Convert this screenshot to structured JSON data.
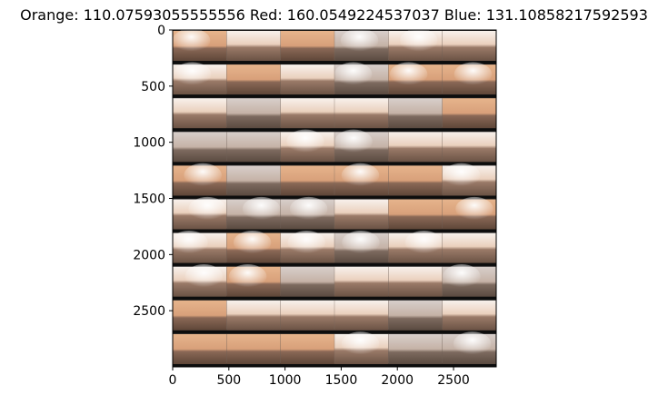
{
  "title": "Orange: 110.07593055555556 Red: 160.0549224537037 Blue: 131.10858217592593",
  "image": {
    "description_name": "panorama-tile-grid",
    "rows": 10,
    "cols": 6,
    "extent": {
      "width": 2880,
      "height": 3000
    }
  },
  "axes": {
    "x_ticks": [
      "0",
      "500",
      "1000",
      "1500",
      "2000",
      "2500"
    ],
    "x_tick_values": [
      0,
      500,
      1000,
      1500,
      2000,
      2500
    ],
    "y_ticks": [
      "0",
      "500",
      "1000",
      "1500",
      "2000",
      "2500"
    ],
    "y_tick_values": [
      0,
      500,
      1000,
      1500,
      2000,
      2500
    ]
  },
  "colors": {
    "sky_light": "#f6ece6",
    "sky_warm": "#e8b890",
    "ground_dark": "#6a5244",
    "ground_mid": "#8d7060",
    "divider": "#0d0d0d"
  }
}
